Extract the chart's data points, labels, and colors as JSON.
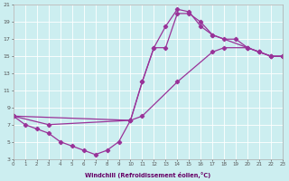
{
  "xlabel": "Windchill (Refroidissement éolien,°C)",
  "bg_color": "#cceef0",
  "line_color": "#993399",
  "xlim": [
    0,
    23
  ],
  "ylim": [
    3,
    21
  ],
  "xticks": [
    0,
    1,
    2,
    3,
    4,
    5,
    6,
    7,
    8,
    9,
    10,
    11,
    12,
    13,
    14,
    15,
    16,
    17,
    18,
    19,
    20,
    21,
    22,
    23
  ],
  "yticks": [
    3,
    5,
    7,
    9,
    11,
    13,
    15,
    17,
    19,
    21
  ],
  "s1x": [
    0,
    1,
    2,
    3,
    4,
    5,
    6,
    7,
    8,
    9,
    10,
    11,
    12,
    13,
    14,
    15,
    16,
    17,
    18,
    19,
    20,
    21,
    22,
    23
  ],
  "s1y": [
    8,
    7,
    6.5,
    6,
    5,
    4.5,
    4,
    3.5,
    4,
    5,
    7.5,
    12,
    16,
    18.5,
    20.5,
    20.2,
    18.5,
    17.5,
    17,
    17,
    16,
    15.5,
    15,
    15
  ],
  "s2x": [
    0,
    3,
    10,
    11,
    12,
    13,
    14,
    15,
    16,
    17,
    20,
    21,
    22,
    23
  ],
  "s2y": [
    8,
    7,
    7.5,
    12,
    16,
    16,
    20,
    20,
    19,
    17.5,
    16,
    15.5,
    15,
    15
  ],
  "s3x": [
    0,
    10,
    11,
    14,
    17,
    18,
    20,
    21,
    22,
    23
  ],
  "s3y": [
    8,
    7.5,
    8,
    12,
    15.5,
    16,
    16,
    15.5,
    15,
    15
  ]
}
